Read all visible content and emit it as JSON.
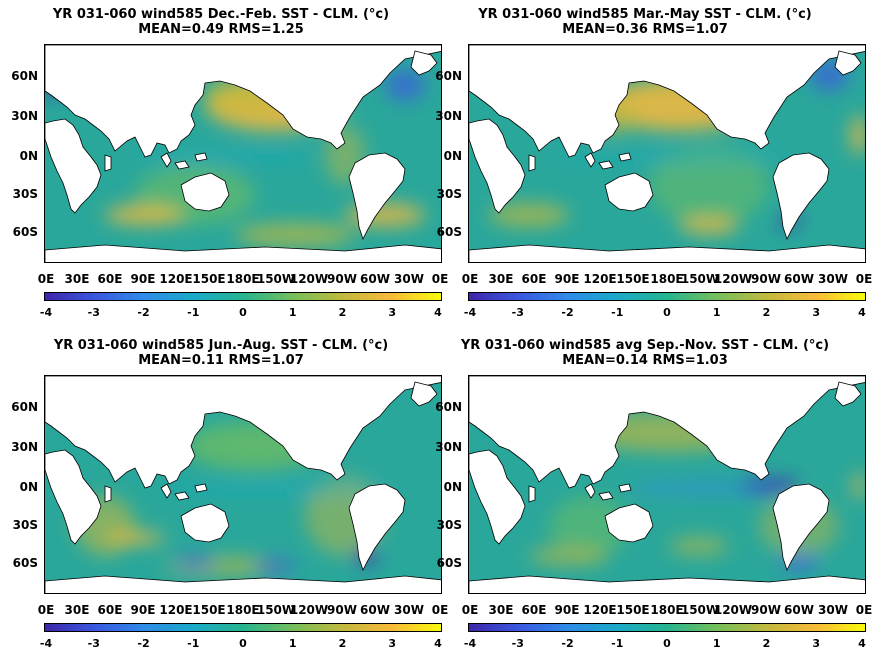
{
  "colorbar": {
    "ticks": [
      "-4",
      "-3",
      "-2",
      "-1",
      "0",
      "1",
      "2",
      "3",
      "4"
    ],
    "colors": [
      "#3e26a8",
      "#3a58e0",
      "#2f8be8",
      "#1aaac8",
      "#26b48f",
      "#74bf5c",
      "#c1b93f",
      "#f8ba3a",
      "#f8fa0d"
    ]
  },
  "colors": {
    "land": "#ffffff",
    "ocean_base": "#2aa79b"
  },
  "panels": [
    {
      "id": "djf",
      "title_line1": "YR 031-060 wind585  Dec.-Feb. SST - CLM. (°c)",
      "title_line2": "MEAN=0.49   RMS=1.25",
      "y_ticks": [
        "60N",
        "30N",
        "0N",
        "30S",
        "60S"
      ],
      "x_ticks": [
        "0E",
        "30E",
        "60E",
        "90E",
        "120E",
        "150E",
        "180E",
        "150W",
        "120W",
        "90W",
        "60W",
        "30W",
        "0E"
      ],
      "mean": 0.49,
      "rms": 1.25
    },
    {
      "id": "mam",
      "title_line1": "YR 031-060 wind585 Mar.-May SST - CLM. (°c)",
      "title_line2": "MEAN=0.36   RMS=1.07",
      "y_ticks": [
        "60N",
        "30N",
        "0N",
        "30S",
        "60S"
      ],
      "x_ticks": [
        "0E",
        "30E",
        "60E",
        "90E",
        "120E",
        "150E",
        "180E",
        "150W",
        "120W",
        "90W",
        "60W",
        "30W",
        "0E"
      ],
      "mean": 0.36,
      "rms": 1.07
    },
    {
      "id": "jja",
      "title_line1": "YR 031-060 wind585 Jun.-Aug. SST - CLM. (°c)",
      "title_line2": "MEAN=0.11   RMS=1.07",
      "y_ticks": [
        "60N",
        "30N",
        "0N",
        "30S",
        "60S"
      ],
      "x_ticks": [
        "0E",
        "30E",
        "60E",
        "90E",
        "120E",
        "150E",
        "180E",
        "150W",
        "120W",
        "90W",
        "60W",
        "30W",
        "0E"
      ],
      "mean": 0.11,
      "rms": 1.07
    },
    {
      "id": "son",
      "title_line1": "YR 031-060 wind585 avg Sep.-Nov. SST - CLM. (°c)",
      "title_line2": "MEAN=0.14   RMS=1.03",
      "y_ticks": [
        "60N",
        "30N",
        "0N",
        "30S",
        "60S"
      ],
      "x_ticks": [
        "0E",
        "30E",
        "60E",
        "90E",
        "120E",
        "150E",
        "180E",
        "150W",
        "120W",
        "90W",
        "60W",
        "30W",
        "0E"
      ],
      "mean": 0.14,
      "rms": 1.03
    }
  ]
}
